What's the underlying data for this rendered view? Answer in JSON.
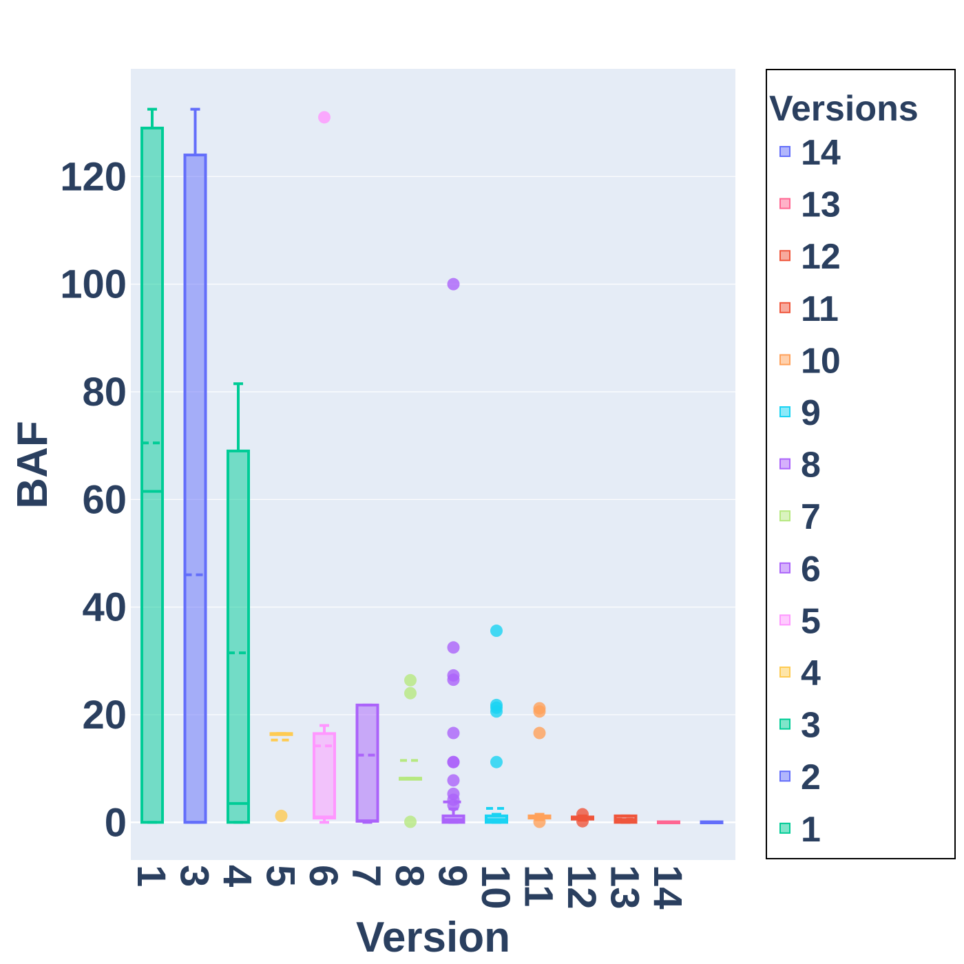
{
  "chart_data": {
    "type": "box",
    "xlabel": "Version",
    "ylabel": "BAF",
    "ylim": [
      -7,
      140
    ],
    "yticks": [
      0,
      20,
      40,
      60,
      80,
      100,
      120
    ],
    "categories": [
      "1",
      "3",
      "4",
      "5",
      "6",
      "7",
      "8",
      "9",
      "10",
      "11",
      "12",
      "13",
      "14",
      ""
    ],
    "legend": {
      "title": "Versions",
      "placement": "right",
      "entries": [
        "14",
        "13",
        "12",
        "11",
        "10",
        "9",
        "8",
        "7",
        "6",
        "5",
        "4",
        "3",
        "2",
        "1"
      ]
    },
    "series": [
      {
        "category": "1",
        "legend": "1",
        "color": "#00cc96",
        "q1": 0,
        "median": 61.5,
        "q3": 129,
        "lowerfence": 0,
        "upperfence": 132.5,
        "mean": 70.5,
        "outliers": []
      },
      {
        "category": "3",
        "legend": "2",
        "color": "#636efa",
        "q1": 0,
        "median": 0,
        "q3": 124,
        "lowerfence": 0,
        "upperfence": 132.5,
        "mean": 46,
        "outliers": []
      },
      {
        "category": "4",
        "legend": "3",
        "color": "#00cc96",
        "q1": 0,
        "median": 3.5,
        "q3": 69,
        "lowerfence": 0,
        "upperfence": 81.5,
        "mean": 31.5,
        "outliers": []
      },
      {
        "category": "5",
        "legend": "4",
        "color": "#fecb52",
        "q1": 16.5,
        "median": 16.5,
        "q3": 16.5,
        "lowerfence": 16.5,
        "upperfence": 16.5,
        "mean": 15.3,
        "outliers": [
          1.2
        ]
      },
      {
        "category": "6",
        "legend": "5",
        "color": "#ff97ff",
        "q1": 0.8,
        "median": 1,
        "q3": 16.5,
        "lowerfence": 0,
        "upperfence": 18,
        "mean": 14.2,
        "outliers": [
          131
        ]
      },
      {
        "category": "7",
        "legend": "6",
        "color": "#ab63fa",
        "q1": 0.2,
        "median": 0.3,
        "q3": 21.8,
        "lowerfence": 0,
        "upperfence": 21.8,
        "mean": 12.5,
        "outliers": []
      },
      {
        "category": "8",
        "legend": "7",
        "color": "#b6e880",
        "q1": 8.2,
        "median": 8.2,
        "q3": 8.2,
        "lowerfence": 8.2,
        "upperfence": 8.2,
        "mean": 11.5,
        "outliers": [
          26.4,
          24,
          0.1
        ]
      },
      {
        "category": "9",
        "legend": "8",
        "color": "#ab63fa",
        "q1": 0,
        "median": 0.5,
        "q3": 1.2,
        "lowerfence": 0,
        "upperfence": 2.5,
        "mean": 3.8,
        "outliers": [
          100,
          32.5,
          27.3,
          26.5,
          16.6,
          11.2,
          11.2,
          7.8,
          5.3,
          4.2,
          3.2
        ]
      },
      {
        "category": "10",
        "legend": "9",
        "color": "#19d3f3",
        "q1": 0,
        "median": 0.5,
        "q3": 1.2,
        "lowerfence": 0,
        "upperfence": 1.5,
        "mean": 2.6,
        "outliers": [
          35.6,
          21.8,
          21.3,
          20.6,
          11.2
        ]
      },
      {
        "category": "11",
        "legend": "10",
        "color": "#ffa15a",
        "q1": 0.8,
        "median": 1,
        "q3": 1.2,
        "lowerfence": 0.5,
        "upperfence": 1.5,
        "mean": 1.1,
        "outliers": [
          21.2,
          20.6,
          16.6,
          0.1
        ]
      },
      {
        "category": "12",
        "legend": "11",
        "color": "#ef553b",
        "q1": 0.6,
        "median": 0.8,
        "q3": 1.0,
        "lowerfence": 0.4,
        "upperfence": 1.2,
        "mean": 0.8,
        "outliers": [
          1.5,
          0.2
        ]
      },
      {
        "category": "13",
        "legend": "12",
        "color": "#ef553b",
        "q1": 0,
        "median": 0.5,
        "q3": 1.2,
        "lowerfence": 0,
        "upperfence": 1.2,
        "mean": 0.6,
        "outliers": []
      },
      {
        "category": "14",
        "legend": "13",
        "color": "#ff6692",
        "q1": 0,
        "median": 0,
        "q3": 0.1,
        "lowerfence": 0,
        "upperfence": 0.1,
        "mean": 0.05,
        "outliers": []
      },
      {
        "category": "",
        "legend": "14",
        "color": "#636efa",
        "q1": 0,
        "median": 0,
        "q3": 0.1,
        "lowerfence": 0,
        "upperfence": 0.1,
        "mean": 0.05,
        "outliers": []
      }
    ]
  }
}
